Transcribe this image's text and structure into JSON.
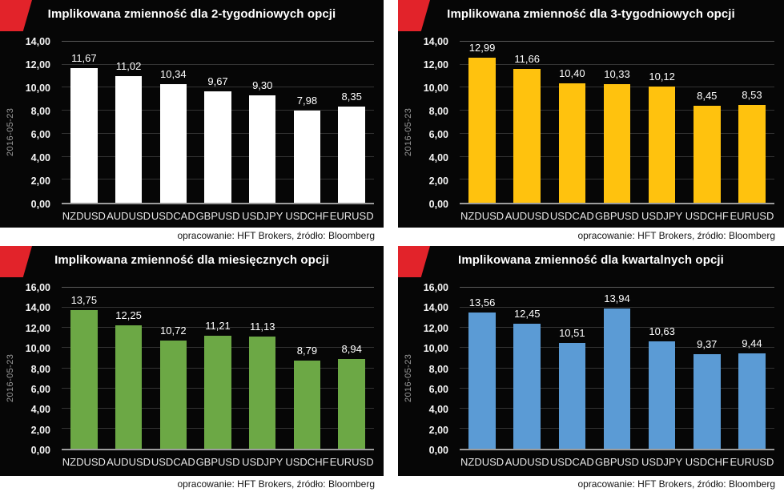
{
  "accent_color": "#e2232a",
  "background_color": "#060606",
  "chart_data": [
    {
      "type": "bar",
      "title": "Implikowana zmienność dla 2-tygodniowych opcji",
      "date_label": "2016-05-23",
      "source_note": "opracowanie: HFT Brokers, źródło: Bloomberg",
      "bar_color": "#ffffff",
      "ylim": [
        0,
        14
      ],
      "y_step": 2,
      "grid": "on",
      "categories": [
        "NZDUSD",
        "AUDUSD",
        "USDCAD",
        "GBPUSD",
        "USDJPY",
        "USDCHF",
        "EURUSD"
      ],
      "values": [
        11.67,
        11.02,
        10.34,
        9.67,
        9.3,
        7.98,
        8.35
      ],
      "value_labels": [
        "11,67",
        "11,02",
        "10,34",
        "9,67",
        "9,30",
        "7,98",
        "8,35"
      ],
      "xlabel": "",
      "ylabel": ""
    },
    {
      "type": "bar",
      "title": "Implikowana zmienność dla 3-tygodniowych opcji",
      "date_label": "2016-05-23",
      "source_note": "opracowanie: HFT Brokers, źródło: Bloomberg",
      "bar_color": "#ffc20e",
      "ylim": [
        0,
        14
      ],
      "y_step": 2,
      "grid": "on",
      "categories": [
        "NZDUSD",
        "AUDUSD",
        "USDCAD",
        "GBPUSD",
        "USDJPY",
        "USDCHF",
        "EURUSD"
      ],
      "values": [
        12.99,
        11.66,
        10.4,
        10.33,
        10.12,
        8.45,
        8.53
      ],
      "value_labels": [
        "12,99",
        "11,66",
        "10,40",
        "10,33",
        "10,12",
        "8,45",
        "8,53"
      ],
      "xlabel": "",
      "ylabel": ""
    },
    {
      "type": "bar",
      "title": "Implikowana zmienność dla miesięcznych opcji",
      "date_label": "2016-05-23",
      "source_note": "opracowanie: HFT Brokers, źródło: Bloomberg",
      "bar_color": "#6ca845",
      "ylim": [
        0,
        16
      ],
      "y_step": 2,
      "grid": "on",
      "categories": [
        "NZDUSD",
        "AUDUSD",
        "USDCAD",
        "GBPUSD",
        "USDJPY",
        "USDCHF",
        "EURUSD"
      ],
      "values": [
        13.75,
        12.25,
        10.72,
        11.21,
        11.13,
        8.79,
        8.94
      ],
      "value_labels": [
        "13,75",
        "12,25",
        "10,72",
        "11,21",
        "11,13",
        "8,79",
        "8,94"
      ],
      "xlabel": "",
      "ylabel": ""
    },
    {
      "type": "bar",
      "title": "Implikowana zmienność dla kwartalnych opcji",
      "date_label": "2016-05-23",
      "source_note": "opracowanie: HFT Brokers, źródło: Bloomberg",
      "bar_color": "#5b9bd5",
      "ylim": [
        0,
        16
      ],
      "y_step": 2,
      "grid": "on",
      "categories": [
        "NZDUSD",
        "AUDUSD",
        "USDCAD",
        "GBPUSD",
        "USDJPY",
        "USDCHF",
        "EURUSD"
      ],
      "values": [
        13.56,
        12.45,
        10.51,
        13.94,
        10.63,
        9.37,
        9.44
      ],
      "value_labels": [
        "13,56",
        "12,45",
        "10,51",
        "13,94",
        "10,63",
        "9,37",
        "9,44"
      ],
      "xlabel": "",
      "ylabel": ""
    }
  ]
}
